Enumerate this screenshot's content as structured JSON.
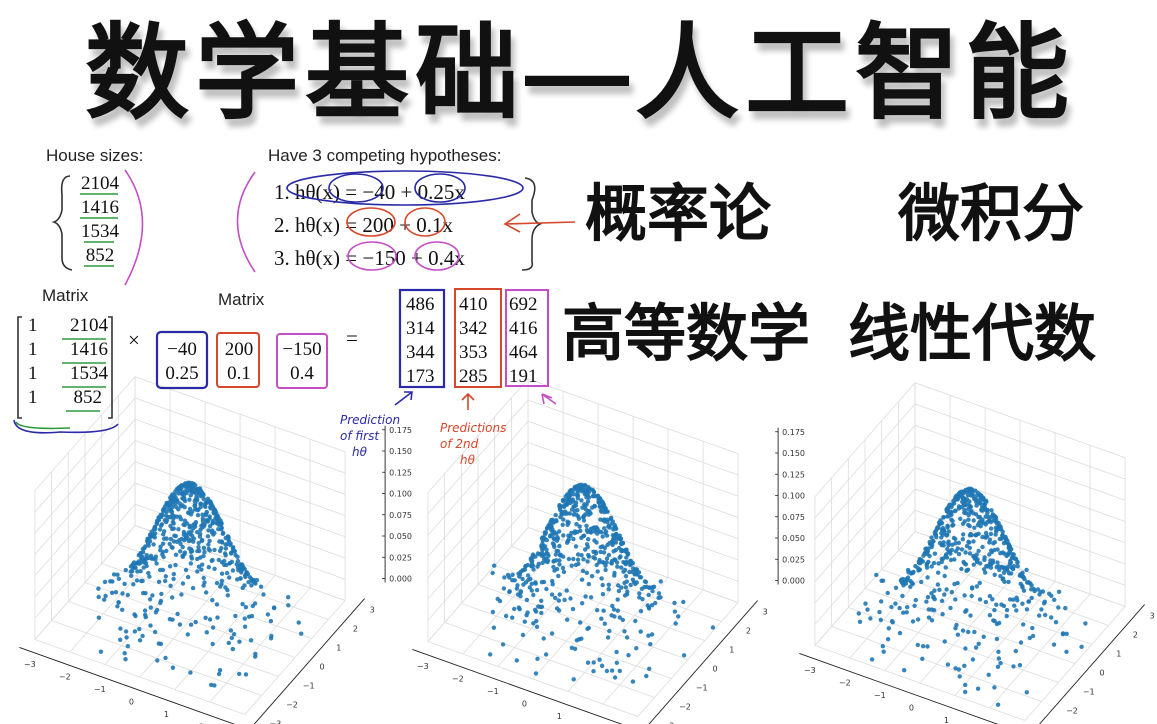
{
  "title": "数学基础—人工智能",
  "topics": [
    "概率论",
    "微积分",
    "高等数学",
    "线性代数"
  ],
  "lecture": {
    "house_sizes_label": "House sizes:",
    "house_sizes": [
      "2104",
      "1416",
      "1534",
      "852"
    ],
    "hypotheses_label": "Have 3 competing hypotheses:",
    "hypotheses": [
      "1. hθ(x) = −40 + 0.25x",
      "2. hθ(x) = 200 + 0.1x",
      "3. hθ(x) = −150 + 0.4x"
    ],
    "matrix_label_1": "Matrix",
    "matrix_label_2": "Matrix",
    "matrix_a": [
      [
        "1",
        "2104"
      ],
      [
        "1",
        "1416"
      ],
      [
        "1",
        "1534"
      ],
      [
        "1",
        "852"
      ]
    ],
    "times": "×",
    "equals": "=",
    "matrix_b": [
      [
        "−40",
        "0.25"
      ],
      [
        "200",
        "0.1"
      ],
      [
        "−150",
        "0.4"
      ]
    ],
    "result": [
      [
        "486",
        "314",
        "344",
        "173"
      ],
      [
        "410",
        "342",
        "353",
        "285"
      ],
      [
        "692",
        "416",
        "464",
        "191"
      ]
    ],
    "note_1": [
      "Prediction",
      "of first",
      "hθ"
    ],
    "note_2": [
      "Predictions",
      "of 2nd",
      "hθ"
    ],
    "annotation_colors": {
      "blue": "#2a2aa8",
      "red": "#d8462a",
      "pink": "#c44ec4",
      "green": "#2e9a3a"
    }
  },
  "chart_data": [
    {
      "type": "scatter3d",
      "description": "bivariate normal density samples",
      "x_ticks": [
        "−3",
        "−2",
        "−1",
        "0",
        "1",
        "2",
        "3"
      ],
      "y_ticks": [
        "−3",
        "−2",
        "−1",
        "0",
        "1",
        "2",
        "3"
      ],
      "z_ticks": [
        "0.000",
        "0.025",
        "0.050",
        "0.075",
        "0.100",
        "0.125",
        "0.150",
        "0.175"
      ],
      "xlim": [
        -3,
        3
      ],
      "ylim": [
        -3,
        3
      ],
      "zlim": [
        0,
        0.175
      ],
      "color": "#1f77b4",
      "grid": true
    },
    {
      "type": "scatter3d",
      "description": "bivariate normal density samples",
      "x_ticks": [
        "−3",
        "−2",
        "−1",
        "0",
        "1",
        "2",
        "3"
      ],
      "y_ticks": [
        "−3",
        "−2",
        "−1",
        "0",
        "1",
        "2",
        "3"
      ],
      "z_ticks": [
        "0.000",
        "0.025",
        "0.050",
        "0.075",
        "0.100",
        "0.125",
        "0.150",
        "0.175"
      ],
      "xlim": [
        -3,
        3
      ],
      "ylim": [
        -3,
        3
      ],
      "zlim": [
        0,
        0.175
      ],
      "color": "#1f77b4",
      "grid": true
    },
    {
      "type": "scatter3d",
      "description": "bivariate normal density samples",
      "x_ticks": [
        "−3",
        "−2",
        "−1",
        "0",
        "1",
        "2",
        "3"
      ],
      "y_ticks": [
        "−3",
        "−2",
        "−1",
        "0",
        "1",
        "2",
        "3"
      ],
      "z_ticks": [
        "0.000",
        "0.025",
        "0.050",
        "0.075",
        "0.100",
        "0.125",
        "0.150",
        "0.175"
      ],
      "xlim": [
        -3,
        3
      ],
      "ylim": [
        -3,
        3
      ],
      "zlim": [
        0,
        0.175
      ],
      "color": "#1f77b4",
      "grid": true
    }
  ]
}
